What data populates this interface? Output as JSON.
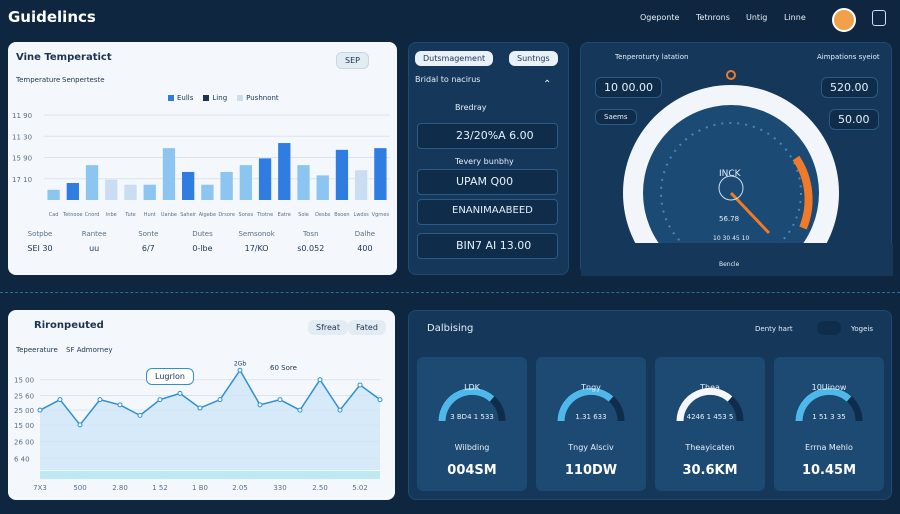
{
  "header": {
    "title": "Guidelincs",
    "nav": [
      "Ogeponte",
      "Tetnrons",
      "Untig",
      "Linne"
    ]
  },
  "temperature_panel": {
    "title": "Vine Temperatict",
    "button": "SEP",
    "tabs": [
      "Temperature",
      "Senperteste"
    ],
    "chart": {
      "type": "bar",
      "legend": [
        {
          "name": "Eulls",
          "color": "#2f7de1"
        },
        {
          "name": "Ling",
          "color": "#1d3450"
        },
        {
          "name": "Pushnont",
          "color": "#c9def2"
        }
      ],
      "categories": [
        "Cad",
        "Tetnooe",
        "Cnord",
        "Inbe",
        "Tute",
        "Hunt",
        "Uanbe",
        "Saheir",
        "Aigebe",
        "Drsore",
        "Sonss",
        "Ttotne",
        "Eatre",
        "Sole",
        "Desbs",
        "Bsoen",
        "Lwdss",
        "Vgrnes"
      ],
      "values": [
        12,
        20,
        41,
        24,
        18,
        18,
        61,
        33,
        18,
        33,
        41,
        49,
        67,
        41,
        29,
        59,
        35,
        61
      ],
      "colors": [
        "#8cc5f0",
        "#2f7de1",
        "#8cc5f0",
        "#c9def2",
        "#c9def2",
        "#8cc5f0",
        "#8cc5f0",
        "#2f7de1",
        "#8cc5f0",
        "#8cc5f0",
        "#8cc5f0",
        "#2f7de1",
        "#2f7de1",
        "#8cc5f0",
        "#8cc5f0",
        "#2f7de1",
        "#c9def2",
        "#2f7de1"
      ],
      "ylim": [
        0,
        100
      ],
      "yticks": [
        {
          "value": 25,
          "label": "17 10"
        },
        {
          "value": 50,
          "label": "15 90"
        },
        {
          "value": 75,
          "label": "11 30"
        },
        {
          "value": 100,
          "label": "11 90"
        }
      ],
      "grid": true
    },
    "stats": [
      {
        "label": "Sotpbe",
        "value": "SEI 30"
      },
      {
        "label": "Rantee",
        "value": "uu"
      },
      {
        "label": "Sonte",
        "value": "6/7"
      },
      {
        "label": "Dutes",
        "value": "0-lbe"
      },
      {
        "label": "Semsonok",
        "value": "17/KO"
      },
      {
        "label": "Tosn",
        "value": "s0.052"
      },
      {
        "label": "Dalhe",
        "value": "400"
      }
    ]
  },
  "management_panel": {
    "buttons": [
      "Dutsmagement",
      "Suntngs"
    ],
    "subtitle": "Bridal to nacirus",
    "rows": [
      "Bredray",
      "23/20%A 6.00",
      "Tevery bunbhy",
      "UPAM Q00",
      "ENANIMAABEED",
      "BIN7 AI 13.00"
    ]
  },
  "gauge_panel": {
    "title": "Tenperoturty latation",
    "right_title": "Aimpations syeiot",
    "left_values": [
      "10 00.00",
      "Saems"
    ],
    "right_values": [
      "520.00",
      "50.00"
    ],
    "gauge_label": "INCK",
    "gauge_value": "56.78",
    "gauge_scale": "10 30 45 10",
    "gauge_caption": "Bencle"
  },
  "trend_panel": {
    "title": "Rironpeuted",
    "buttons": [
      "Sfreat",
      "Fated"
    ],
    "tabs": [
      "Tepeerature",
      "SF Admorney"
    ],
    "tooltip": "Lugrlon",
    "annotation": "60 Sore",
    "peak_label": "2Gb",
    "chart": {
      "type": "line",
      "categories": [
        "7X3",
        null,
        "500",
        null,
        "2.80",
        null,
        "1 52",
        null,
        "1 B0",
        null,
        "2.05",
        null,
        "330",
        null,
        "2.50",
        null,
        "5.02",
        null
      ],
      "values": [
        57,
        67,
        43,
        67,
        62,
        52,
        67,
        73,
        59,
        67,
        95,
        62,
        67,
        57,
        86,
        57,
        81,
        67
      ],
      "color": "#2f8fd6",
      "ylim": [
        0,
        100
      ],
      "yticks": [
        {
          "value": 11,
          "label": "6 40"
        },
        {
          "value": 27,
          "label": "26 00"
        },
        {
          "value": 43,
          "label": "15 00"
        },
        {
          "value": 57,
          "label": "25 00"
        },
        {
          "value": 71,
          "label": "25 60"
        },
        {
          "value": 86,
          "label": "15 00"
        }
      ],
      "grid": true
    }
  },
  "balance_panel": {
    "title": "Dalbising",
    "filter": "Denty hart",
    "toggle": "Yogeis",
    "cards": [
      {
        "gauge": "LDK",
        "sub": "3 BD4 1 533",
        "label": "Wilbding",
        "value": "004SM"
      },
      {
        "gauge": "Tngy",
        "sub": "1.31 633",
        "label": "Tngy Alsciv",
        "value": "110DW"
      },
      {
        "gauge": "Thea",
        "sub": "4246 1 453 5",
        "label": "Theayicaten",
        "value": "30.6KM"
      },
      {
        "gauge": "10Uinow",
        "sub": "1 51 3 35",
        "label": "Errna Mehlo",
        "value": "10.45M"
      }
    ]
  }
}
